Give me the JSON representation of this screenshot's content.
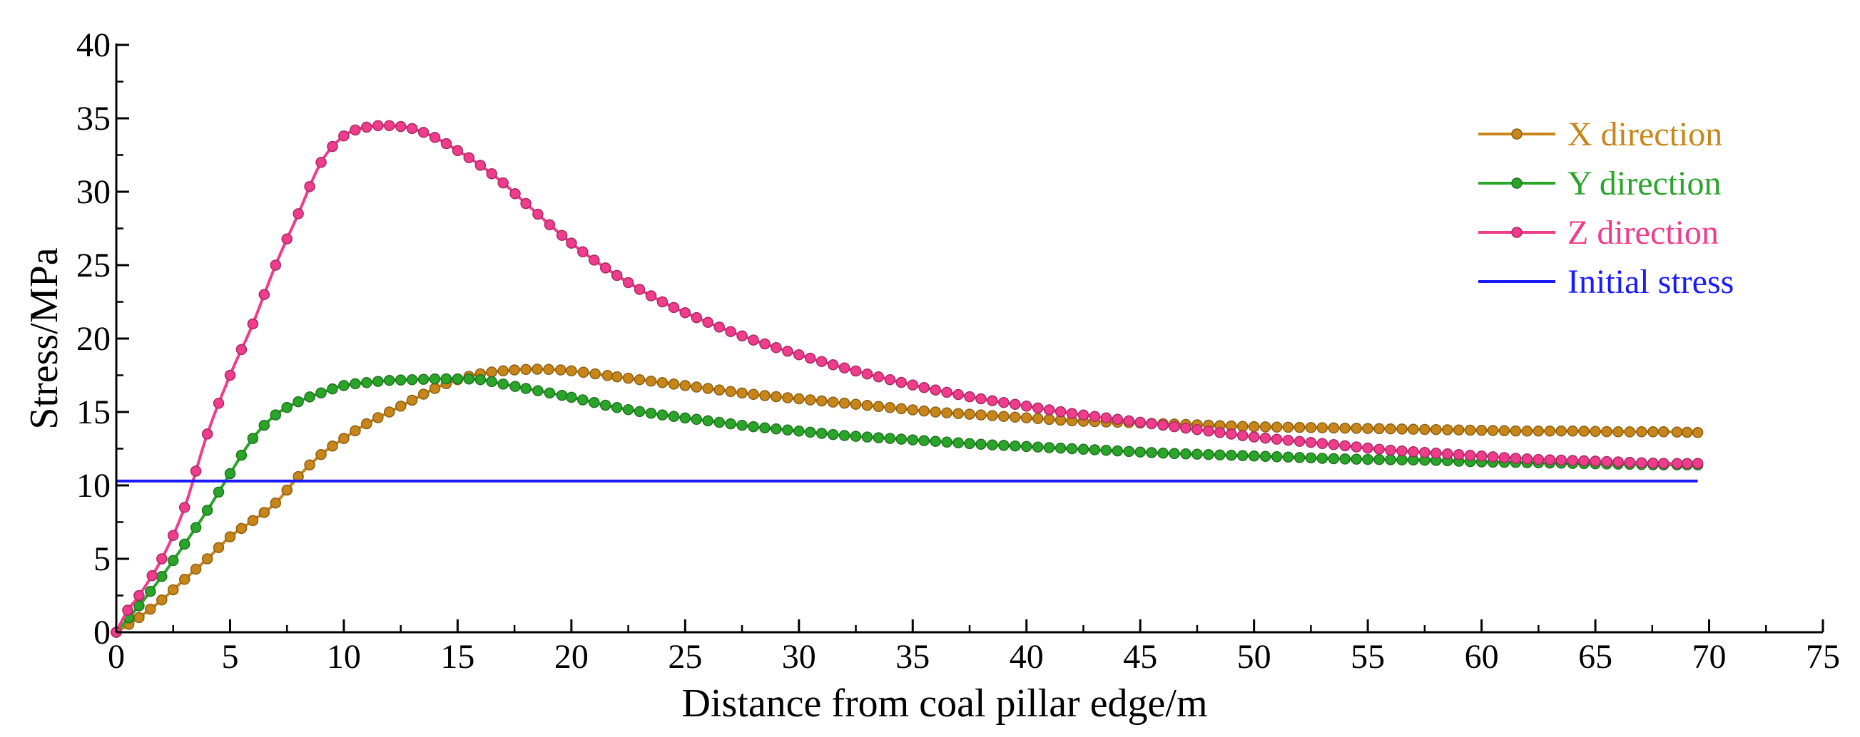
{
  "chart_data": {
    "type": "line",
    "title": "",
    "xlabel": "Distance from coal pillar edge/m",
    "ylabel": "Stress/MPa",
    "xlim": [
      0,
      75
    ],
    "ylim": [
      0,
      40
    ],
    "xticks": [
      "0",
      "5",
      "10",
      "15",
      "20",
      "25",
      "30",
      "35",
      "40",
      "45",
      "50",
      "55",
      "60",
      "65",
      "70",
      "75"
    ],
    "yticks": [
      "0",
      "5",
      "10",
      "15",
      "20",
      "25",
      "30",
      "35",
      "40"
    ],
    "grid": false,
    "legend_position": "top-right",
    "series": [
      {
        "name": "X direction",
        "color": "#c8861a",
        "marker": "circle",
        "x": [
          0,
          1,
          2,
          3,
          4,
          5,
          6,
          7,
          8,
          9,
          10,
          11,
          12,
          13,
          14,
          15,
          16,
          17,
          18,
          19,
          20,
          22,
          24,
          26,
          28,
          30,
          32,
          34,
          36,
          38,
          40,
          42,
          44,
          46,
          48,
          50,
          52,
          54,
          56,
          58,
          60,
          62,
          64,
          66,
          68,
          69.5
        ],
        "y": [
          0,
          1.0,
          2.2,
          3.6,
          5.0,
          6.5,
          7.6,
          8.8,
          10.6,
          12.1,
          13.2,
          14.2,
          15.0,
          15.8,
          16.6,
          17.2,
          17.6,
          17.8,
          17.9,
          17.9,
          17.8,
          17.4,
          17.0,
          16.6,
          16.2,
          15.9,
          15.6,
          15.3,
          15.0,
          14.8,
          14.6,
          14.4,
          14.3,
          14.2,
          14.1,
          14.0,
          13.95,
          13.9,
          13.85,
          13.8,
          13.75,
          13.7,
          13.7,
          13.65,
          13.65,
          13.6
        ]
      },
      {
        "name": "Y direction",
        "color": "#2aa52a",
        "marker": "circle",
        "x": [
          0,
          1,
          2,
          3,
          4,
          5,
          6,
          7,
          8,
          9,
          10,
          11,
          12,
          13,
          14,
          15,
          16,
          17,
          18,
          20,
          22,
          24,
          26,
          28,
          30,
          32,
          34,
          36,
          38,
          40,
          42,
          44,
          46,
          48,
          50,
          52,
          54,
          56,
          58,
          60,
          62,
          64,
          66,
          68,
          69.5
        ],
        "y": [
          0,
          1.8,
          3.8,
          6.0,
          8.3,
          10.8,
          13.2,
          14.8,
          15.7,
          16.3,
          16.8,
          17.0,
          17.15,
          17.2,
          17.25,
          17.25,
          17.2,
          16.9,
          16.6,
          16.0,
          15.3,
          14.8,
          14.4,
          14.0,
          13.7,
          13.4,
          13.2,
          13.0,
          12.8,
          12.65,
          12.5,
          12.35,
          12.2,
          12.1,
          12.0,
          11.9,
          11.8,
          11.75,
          11.7,
          11.6,
          11.55,
          11.5,
          11.45,
          11.4,
          11.4
        ]
      },
      {
        "name": "Z direction",
        "color": "#f03c8c",
        "marker": "circle",
        "x": [
          0,
          0.5,
          1,
          2,
          3,
          4,
          5,
          6,
          7,
          8,
          9,
          10,
          11,
          12,
          13,
          14,
          15,
          16,
          17,
          18,
          20,
          22,
          24,
          26,
          28,
          30,
          32,
          34,
          36,
          38,
          40,
          42,
          44,
          46,
          48,
          50,
          52,
          54,
          56,
          58,
          60,
          62,
          64,
          66,
          68,
          69.5
        ],
        "y": [
          0,
          1.5,
          2.5,
          5.0,
          8.5,
          13.5,
          17.5,
          21.0,
          25.0,
          28.5,
          32.0,
          33.8,
          34.4,
          34.5,
          34.3,
          33.7,
          32.8,
          31.8,
          30.6,
          29.2,
          26.5,
          24.3,
          22.5,
          21.1,
          19.9,
          18.9,
          18.0,
          17.2,
          16.5,
          15.9,
          15.4,
          14.9,
          14.5,
          14.1,
          13.7,
          13.3,
          13.0,
          12.7,
          12.4,
          12.2,
          12.0,
          11.8,
          11.7,
          11.6,
          11.5,
          11.5
        ]
      },
      {
        "name": "Initial stress",
        "color": "#1a1aff",
        "marker": "none",
        "x": [
          0,
          69.5
        ],
        "y": [
          10.3,
          10.3
        ]
      }
    ]
  }
}
